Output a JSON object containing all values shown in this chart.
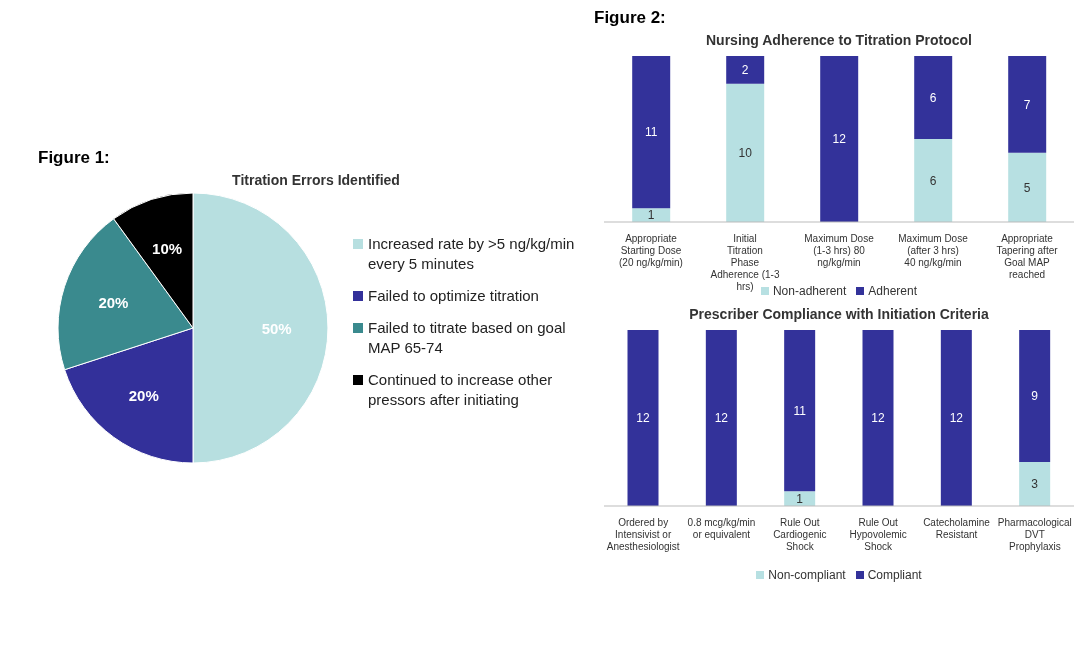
{
  "chart_data": [
    {
      "type": "pie",
      "title": "Titration Errors Identified",
      "annotations": [
        "Figure 1:"
      ],
      "categories": [
        "Increased rate by >5 ng/kg/min every 5 minutes",
        "Failed to optimize titration",
        "Failed to titrate based on goal MAP 65-74",
        "Continued to increase other pressors after initiating"
      ],
      "values": [
        50,
        20,
        20,
        10
      ],
      "colors": [
        "#b7dfe0",
        "#33309a",
        "#3a8a8e",
        "#000000"
      ],
      "value_labels": [
        "50%",
        "20%",
        "20%",
        "10%"
      ],
      "legend": "right"
    },
    {
      "type": "bar",
      "stacked": true,
      "title": "Nursing Adherence to Titration Protocol",
      "annotations": [
        "Figure 2:"
      ],
      "categories": [
        "Appropriate Starting Dose (20 ng/kg/min)",
        "Initial Titration Phase Adherence (1-3 hrs)",
        "Maximum Dose (1-3 hrs) 80 ng/kg/min",
        "Maximum Dose (after 3 hrs) 40 ng/kg/min",
        "Appropriate Tapering after Goal MAP reached"
      ],
      "series": [
        {
          "name": "Non-adherent",
          "color": "#b7e0e2",
          "values": [
            1,
            10,
            null,
            6,
            5
          ]
        },
        {
          "name": "Adherent",
          "color": "#33329a",
          "values": [
            11,
            2,
            12,
            6,
            7
          ]
        }
      ],
      "data_labels": true,
      "tick_labels": "x",
      "legend": "bottom"
    },
    {
      "type": "bar",
      "stacked": true,
      "title": "Prescriber Compliance with Initiation Criteria",
      "categories": [
        "Ordered by Intensivist or Anesthesiologist",
        "0.8 mcg/kg/min or equivalent",
        "Rule Out Cardiogenic Shock",
        "Rule Out Hypovolemic Shock",
        "Catecholamine Resistant",
        "Pharmacological DVT Prophylaxis"
      ],
      "series": [
        {
          "name": "Non-compliant",
          "color": "#b7e0e2",
          "values": [
            null,
            null,
            1,
            null,
            null,
            3
          ]
        },
        {
          "name": "Compliant",
          "color": "#33329a",
          "values": [
            12,
            12,
            11,
            12,
            12,
            9
          ]
        }
      ],
      "data_labels": true,
      "tick_labels": "x",
      "legend": "bottom"
    }
  ]
}
